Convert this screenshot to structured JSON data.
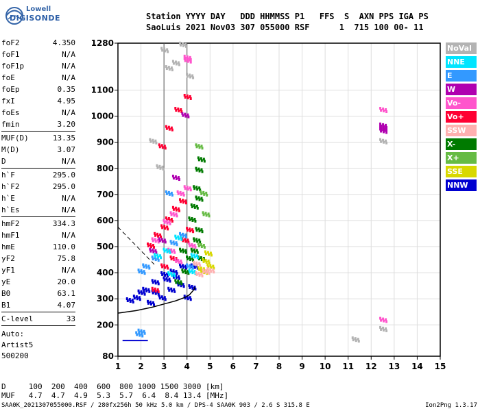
{
  "logo": {
    "line1": "Lowell",
    "line2": "DIGISONDE"
  },
  "header": {
    "line1": "Station YYYY DAY   DDD HHMMSS P1   FFS  S  AXN PPS IGA PS",
    "line2": "SaoLuis 2021 Nov03 307 055000 RSF      1  715 100 00- 11"
  },
  "params": [
    [
      {
        "k": "foF2",
        "v": "4.350"
      },
      {
        "k": "foF1",
        "v": "N/A"
      },
      {
        "k": "foF1p",
        "v": "N/A"
      },
      {
        "k": "foE",
        "v": "N/A"
      },
      {
        "k": "foEp",
        "v": "0.35"
      },
      {
        "k": "fxI",
        "v": "4.95"
      },
      {
        "k": "foEs",
        "v": "N/A"
      },
      {
        "k": "fmin",
        "v": "3.20"
      }
    ],
    [
      {
        "k": "MUF(D)",
        "v": "13.35"
      },
      {
        "k": "M(D)",
        "v": "3.07"
      },
      {
        "k": "D",
        "v": "N/A"
      }
    ],
    [
      {
        "k": "h`F",
        "v": "295.0"
      },
      {
        "k": "h`F2",
        "v": "295.0"
      },
      {
        "k": "h`E",
        "v": "N/A"
      },
      {
        "k": "h`Es",
        "v": "N/A"
      }
    ],
    [
      {
        "k": "hmF2",
        "v": "334.3"
      },
      {
        "k": "hmF1",
        "v": "N/A"
      },
      {
        "k": "hmE",
        "v": "110.0"
      },
      {
        "k": "yF2",
        "v": "75.8"
      },
      {
        "k": "yF1",
        "v": "N/A"
      },
      {
        "k": "yE",
        "v": "20.0"
      },
      {
        "k": "B0",
        "v": "63.1"
      },
      {
        "k": "B1",
        "v": "4.07"
      }
    ],
    [
      {
        "k": "C-level",
        "v": "33"
      }
    ]
  ],
  "auto": {
    "line1": "Auto:",
    "line2": "Artist5",
    "line3": "500200"
  },
  "legend": [
    {
      "label": "NoVal",
      "color": "#b3b3b3",
      "text": "#ffffff"
    },
    {
      "label": "NNE",
      "color": "#00e5ff",
      "text": "#ffffff"
    },
    {
      "label": "E",
      "color": "#3399ff",
      "text": "#ffffff"
    },
    {
      "label": "W",
      "color": "#b000b0",
      "text": "#ffffff"
    },
    {
      "label": "Vo-",
      "color": "#ff55cc",
      "text": "#ffffff"
    },
    {
      "label": "Vo+",
      "color": "#ff0033",
      "text": "#ffffff"
    },
    {
      "label": "SSW",
      "color": "#ffb0b0",
      "text": "#ffffff"
    },
    {
      "label": "X-",
      "color": "#007a00",
      "text": "#ffffff"
    },
    {
      "label": "X+",
      "color": "#66bb44",
      "text": "#ffffff"
    },
    {
      "label": "SSE",
      "color": "#d8d800",
      "text": "#ffffff"
    },
    {
      "label": "NNW",
      "color": "#0000d0",
      "text": "#ffffff"
    }
  ],
  "muf": {
    "line1": "D     100  200  400  600  800 1000 1500 3000 [km]",
    "line2": "MUF   4.7  4.7  4.9  5.3  5.7  6.4  8.4 13.4 [MHz]"
  },
  "footer": {
    "left": "SAA0K_2021307055000.RSF / 280fx256h 50 kHz 5.0 km / DPS-4 SAA0K 903 / 2.6 S 315.8 E",
    "right": "Ion2Png 1.3.17"
  },
  "chart_data": {
    "type": "scatter",
    "title": "",
    "xlabel": "",
    "ylabel": "",
    "xlim": [
      1,
      15
    ],
    "ylim": [
      80,
      1280
    ],
    "x_ticks": [
      1,
      2,
      3,
      4,
      5,
      6,
      7,
      8,
      9,
      10,
      11,
      12,
      13,
      14,
      15
    ],
    "y_ticks": [
      80,
      200,
      300,
      400,
      500,
      600,
      700,
      800,
      900,
      1000,
      1100,
      1280
    ],
    "grid": true,
    "trace_profile": {
      "name": "",
      "x": [
        1.0,
        1.8,
        2.5,
        3.0,
        3.5,
        3.9,
        4.1,
        4.2,
        4.3,
        4.35
      ],
      "y": [
        245,
        255,
        268,
        280,
        292,
        305,
        315,
        325,
        335,
        345
      ]
    },
    "dashed_line": {
      "x": [
        1.0,
        2.6
      ],
      "y": [
        575,
        430
      ]
    },
    "vertical_markers": [
      3.0,
      4.0
    ],
    "series": [
      {
        "name": "NNW",
        "points": [
          [
            1.8,
            300
          ],
          [
            2.2,
            330
          ],
          [
            2.6,
            360
          ],
          [
            3.0,
            390
          ],
          [
            3.4,
            400
          ],
          [
            3.8,
            420
          ],
          [
            2.4,
            280
          ],
          [
            2.9,
            300
          ],
          [
            3.3,
            330
          ],
          [
            3.7,
            350
          ],
          [
            4.0,
            300
          ],
          [
            4.2,
            340
          ],
          [
            2.6,
            320
          ],
          [
            3.1,
            370
          ],
          [
            3.5,
            380
          ],
          [
            1.5,
            290
          ],
          [
            2.0,
            320
          ],
          [
            4.3,
            420
          ]
        ]
      },
      {
        "name": "X-",
        "points": [
          [
            3.6,
            360
          ],
          [
            3.9,
            400
          ],
          [
            4.1,
            450
          ],
          [
            4.3,
            480
          ],
          [
            4.4,
            520
          ],
          [
            4.5,
            560
          ],
          [
            4.3,
            650
          ],
          [
            4.4,
            720
          ],
          [
            4.5,
            790
          ],
          [
            4.6,
            830
          ],
          [
            3.8,
            480
          ],
          [
            4.2,
            600
          ],
          [
            4.6,
            450
          ],
          [
            4.5,
            680
          ]
        ]
      },
      {
        "name": "Vo+",
        "points": [
          [
            2.4,
            500
          ],
          [
            2.7,
            540
          ],
          [
            3.0,
            570
          ],
          [
            3.2,
            600
          ],
          [
            3.5,
            640
          ],
          [
            3.8,
            670
          ],
          [
            2.9,
            880
          ],
          [
            3.2,
            950
          ],
          [
            3.6,
            1020
          ],
          [
            4.0,
            1070
          ],
          [
            2.6,
            330
          ],
          [
            3.0,
            420
          ],
          [
            3.4,
            450
          ],
          [
            3.9,
            520
          ],
          [
            4.1,
            560
          ]
        ]
      },
      {
        "name": "Vo-",
        "points": [
          [
            2.6,
            520
          ],
          [
            3.1,
            590
          ],
          [
            3.4,
            620
          ],
          [
            3.7,
            700
          ],
          [
            4.0,
            720
          ],
          [
            4.0,
            1210
          ],
          [
            4.0,
            1220
          ],
          [
            3.3,
            480
          ],
          [
            3.6,
            440
          ],
          [
            4.2,
            500
          ],
          [
            12.5,
            1020
          ],
          [
            12.5,
            215
          ]
        ]
      },
      {
        "name": "W",
        "points": [
          [
            12.5,
            950
          ],
          [
            12.5,
            940
          ],
          [
            12.5,
            960
          ],
          [
            3.9,
            1000
          ],
          [
            2.9,
            520
          ],
          [
            3.5,
            760
          ],
          [
            2.5,
            480
          ]
        ]
      },
      {
        "name": "E",
        "points": [
          [
            2.0,
            400
          ],
          [
            2.2,
            420
          ],
          [
            2.6,
            450
          ],
          [
            3.4,
            510
          ],
          [
            3.8,
            540
          ],
          [
            1.9,
            160
          ],
          [
            2.0,
            170
          ],
          [
            4.1,
            420
          ],
          [
            3.2,
            700
          ]
        ]
      },
      {
        "name": "NNE",
        "points": [
          [
            2.7,
            460
          ],
          [
            3.1,
            480
          ],
          [
            3.6,
            530
          ],
          [
            4.2,
            400
          ],
          [
            4.3,
            460
          ],
          [
            3.3,
            390
          ]
        ]
      },
      {
        "name": "X+",
        "points": [
          [
            4.7,
            700
          ],
          [
            4.5,
            880
          ],
          [
            4.8,
            620
          ],
          [
            4.6,
            500
          ]
        ]
      },
      {
        "name": "SSE",
        "points": [
          [
            4.6,
            410
          ],
          [
            4.8,
            440
          ],
          [
            5.0,
            420
          ],
          [
            4.7,
            400
          ],
          [
            4.9,
            470
          ]
        ]
      },
      {
        "name": "SSW",
        "points": [
          [
            4.5,
            390
          ],
          [
            4.8,
            400
          ],
          [
            5.0,
            405
          ],
          [
            4.4,
            430
          ]
        ]
      },
      {
        "name": "NoVal",
        "points": [
          [
            3.0,
            1250
          ],
          [
            3.2,
            1180
          ],
          [
            3.5,
            1200
          ],
          [
            3.8,
            1270
          ],
          [
            4.1,
            1150
          ],
          [
            2.5,
            900
          ],
          [
            2.8,
            800
          ],
          [
            11.3,
            140
          ],
          [
            12.5,
            900
          ],
          [
            12.5,
            180
          ]
        ]
      }
    ],
    "low_trace": {
      "x": [
        1.2,
        2.3
      ],
      "y": [
        140,
        140
      ]
    }
  }
}
